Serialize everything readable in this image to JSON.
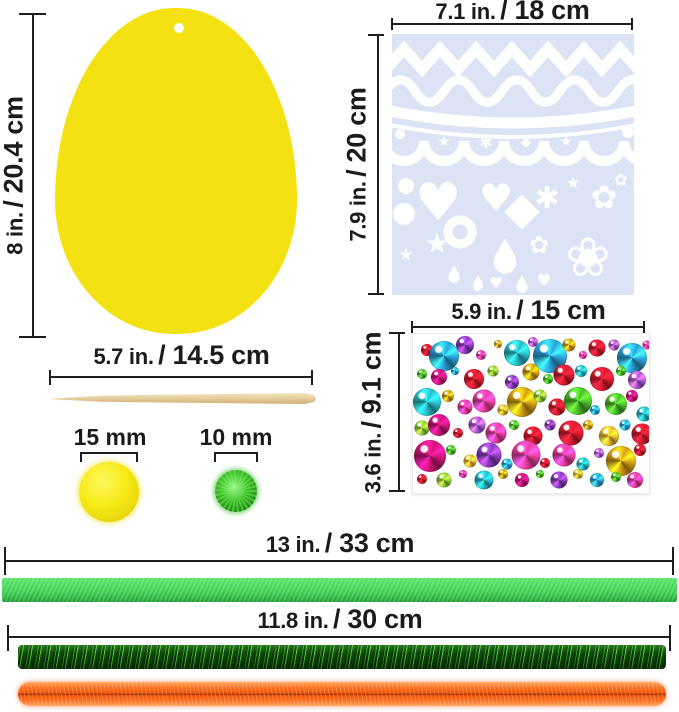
{
  "labels": {
    "egg_height": {
      "a": "8 in.",
      "b": "/ 20.4 cm"
    },
    "stencil_width": {
      "a": "7.1 in.",
      "b": "/ 18 cm"
    },
    "stencil_height": {
      "a": "7.9 in.",
      "b": "/ 20 cm"
    },
    "stick_length": {
      "a": "5.7 in.",
      "b": "/ 14.5 cm"
    },
    "pom_large": "15 mm",
    "pom_small": "10 mm",
    "gem_width": {
      "a": "5.9 in.",
      "b": "/ 15 cm"
    },
    "gem_height": {
      "a": "3.6 in.",
      "b": "/ 9.1 cm"
    },
    "ribbon_length": {
      "a": "13 in.",
      "b": "/ 33 cm"
    },
    "stems_length": {
      "a": "11.8 in.",
      "b": "/ 30 cm"
    }
  },
  "colors": {
    "egg": "#F3E112",
    "stencil_bg": "#DCE3F4",
    "stencil_shapes": "#FFFFFF",
    "ribbon": "#3BD14F",
    "tinsel_stem": "#1E7F16",
    "orange_stem": "#F15608",
    "stick": "#E6D0A0",
    "pom_large": "#F2E614",
    "pom_small": "#46CE3C",
    "measure_line": "#1E1E1E"
  },
  "gems": {
    "palette": {
      "red": "#E01B2E",
      "blue": "#2BA3DC",
      "teal": "#27BECC",
      "pink": "#EF3DA0",
      "magenta": "#D31578",
      "purple": "#8A3CC0",
      "violet": "#AE58D6",
      "green": "#4CBE2A",
      "lime": "#8FD434",
      "gold": "#D9A115",
      "amber": "#EFC02B"
    },
    "items": [
      [
        6,
        10,
        12,
        "red"
      ],
      [
        13,
        14,
        30,
        "blue"
      ],
      [
        22,
        7,
        18,
        "purple"
      ],
      [
        29,
        13,
        10,
        "pink"
      ],
      [
        36,
        6,
        8,
        "gold"
      ],
      [
        44,
        12,
        26,
        "teal"
      ],
      [
        51,
        5,
        10,
        "violet"
      ],
      [
        58,
        14,
        34,
        "blue"
      ],
      [
        66,
        7,
        13,
        "gold"
      ],
      [
        72,
        13,
        8,
        "pink"
      ],
      [
        78,
        9,
        17,
        "red"
      ],
      [
        85,
        7,
        11,
        "violet"
      ],
      [
        93,
        15,
        30,
        "blue"
      ],
      [
        99,
        7,
        9,
        "pink"
      ],
      [
        4,
        25,
        10,
        "green"
      ],
      [
        11,
        27,
        16,
        "magenta"
      ],
      [
        18,
        23,
        8,
        "blue"
      ],
      [
        26,
        28,
        20,
        "red"
      ],
      [
        34,
        23,
        11,
        "lime"
      ],
      [
        42,
        30,
        14,
        "purple"
      ],
      [
        50,
        24,
        17,
        "gold"
      ],
      [
        57,
        28,
        10,
        "green"
      ],
      [
        64,
        26,
        21,
        "red"
      ],
      [
        71,
        23,
        12,
        "teal"
      ],
      [
        80,
        28,
        24,
        "red"
      ],
      [
        88,
        23,
        10,
        "green"
      ],
      [
        95,
        29,
        18,
        "violet"
      ],
      [
        6,
        43,
        28,
        "teal"
      ],
      [
        15,
        39,
        12,
        "gold"
      ],
      [
        22,
        46,
        15,
        "pink"
      ],
      [
        30,
        42,
        23,
        "pink"
      ],
      [
        38,
        48,
        11,
        "amber"
      ],
      [
        46,
        43,
        30,
        "gold"
      ],
      [
        54,
        39,
        13,
        "lime"
      ],
      [
        61,
        46,
        17,
        "red"
      ],
      [
        70,
        42,
        28,
        "green"
      ],
      [
        77,
        48,
        10,
        "blue"
      ],
      [
        86,
        44,
        22,
        "green"
      ],
      [
        93,
        39,
        12,
        "magenta"
      ],
      [
        98,
        50,
        15,
        "teal"
      ],
      [
        4,
        59,
        15,
        "lime"
      ],
      [
        11,
        57,
        22,
        "magenta"
      ],
      [
        19,
        62,
        10,
        "red"
      ],
      [
        27,
        57,
        17,
        "violet"
      ],
      [
        35,
        62,
        21,
        "pink"
      ],
      [
        43,
        57,
        10,
        "green"
      ],
      [
        51,
        64,
        19,
        "red"
      ],
      [
        58,
        57,
        11,
        "purple"
      ],
      [
        67,
        62,
        25,
        "red"
      ],
      [
        74,
        57,
        10,
        "gold"
      ],
      [
        83,
        64,
        20,
        "amber"
      ],
      [
        90,
        57,
        11,
        "blue"
      ],
      [
        97,
        63,
        21,
        "red"
      ],
      [
        7,
        77,
        32,
        "magenta"
      ],
      [
        16,
        73,
        10,
        "green"
      ],
      [
        24,
        80,
        13,
        "amber"
      ],
      [
        32,
        76,
        25,
        "purple"
      ],
      [
        40,
        82,
        11,
        "blue"
      ],
      [
        48,
        76,
        29,
        "pink"
      ],
      [
        56,
        81,
        10,
        "red"
      ],
      [
        64,
        76,
        23,
        "pink"
      ],
      [
        72,
        82,
        13,
        "teal"
      ],
      [
        79,
        75,
        10,
        "violet"
      ],
      [
        88,
        80,
        30,
        "gold"
      ],
      [
        96,
        73,
        12,
        "red"
      ],
      [
        4,
        91,
        10,
        "red"
      ],
      [
        13,
        92,
        15,
        "lime"
      ],
      [
        21,
        88,
        8,
        "pink"
      ],
      [
        30,
        92,
        19,
        "teal"
      ],
      [
        38,
        88,
        10,
        "gold"
      ],
      [
        46,
        92,
        14,
        "magenta"
      ],
      [
        54,
        88,
        8,
        "green"
      ],
      [
        62,
        92,
        17,
        "purple"
      ],
      [
        70,
        88,
        10,
        "amber"
      ],
      [
        78,
        92,
        14,
        "blue"
      ],
      [
        86,
        90,
        10,
        "green"
      ],
      [
        94,
        92,
        16,
        "pink"
      ]
    ]
  }
}
